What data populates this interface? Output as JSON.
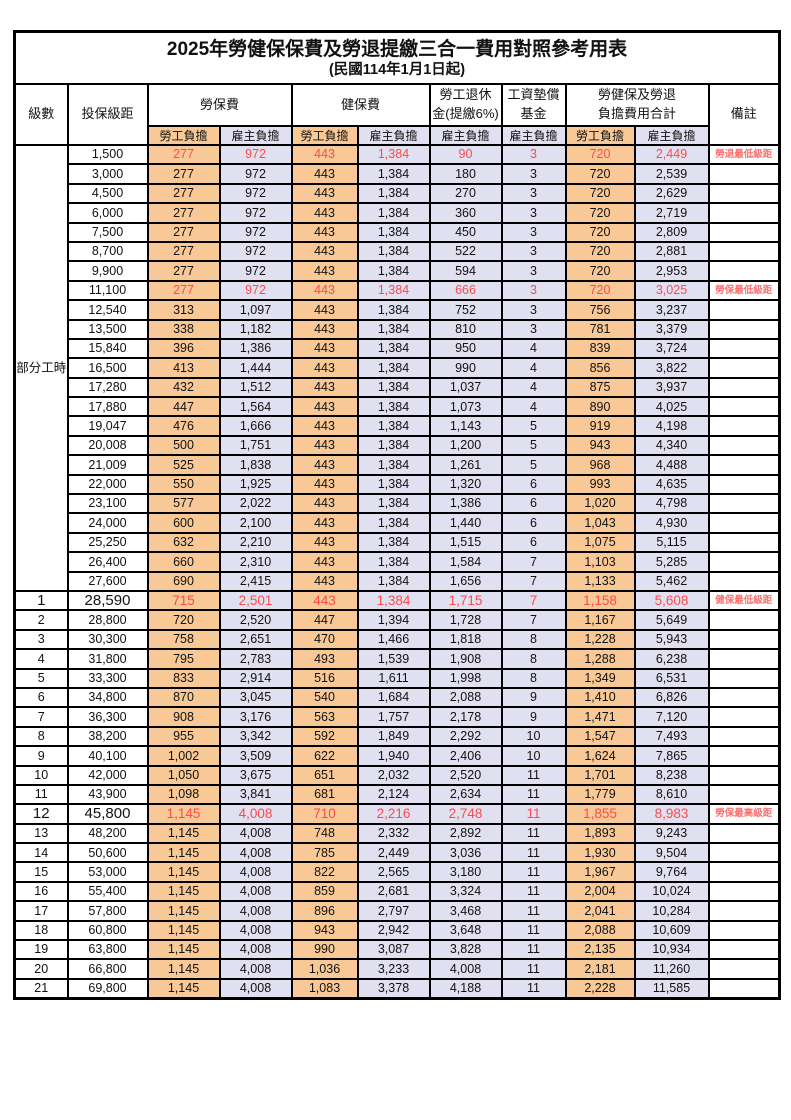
{
  "title": "2025年勞健保保費及勞退提繳三合一費用對照參考用表",
  "subtitle": "(民國114年1月1日起)",
  "colors": {
    "employee_bg": "#F8C996",
    "employer_bg": "#E1E0F1",
    "red_value": "#FB4B4B",
    "red_remark": "#FA7070",
    "border": "#000000"
  },
  "header": {
    "level": "級數",
    "bracket": "投保級距",
    "labor_ins": "勞保費",
    "health_ins": "健保費",
    "pension": "勞工退休\n金(提繳6%)",
    "wage_fund": "工資墊償\n基金",
    "total": "勞健保及勞退\n負擔費用合計",
    "remark": "備註",
    "employee": "勞工負擔",
    "employer": "雇主負擔"
  },
  "part_time_label": "部分工時",
  "table": {
    "part_time_span": 23,
    "rows": [
      {
        "level": "",
        "bracket": "1,500",
        "values": [
          "277",
          "972",
          "443",
          "1,384",
          "90",
          "3",
          "720",
          "2,449"
        ],
        "remark": "勞退最低級距",
        "style": "red"
      },
      {
        "level": "",
        "bracket": "3,000",
        "values": [
          "277",
          "972",
          "443",
          "1,384",
          "180",
          "3",
          "720",
          "2,539"
        ],
        "remark": "",
        "style": ""
      },
      {
        "level": "",
        "bracket": "4,500",
        "values": [
          "277",
          "972",
          "443",
          "1,384",
          "270",
          "3",
          "720",
          "2,629"
        ],
        "remark": "",
        "style": ""
      },
      {
        "level": "",
        "bracket": "6,000",
        "values": [
          "277",
          "972",
          "443",
          "1,384",
          "360",
          "3",
          "720",
          "2,719"
        ],
        "remark": "",
        "style": ""
      },
      {
        "level": "",
        "bracket": "7,500",
        "values": [
          "277",
          "972",
          "443",
          "1,384",
          "450",
          "3",
          "720",
          "2,809"
        ],
        "remark": "",
        "style": ""
      },
      {
        "level": "",
        "bracket": "8,700",
        "values": [
          "277",
          "972",
          "443",
          "1,384",
          "522",
          "3",
          "720",
          "2,881"
        ],
        "remark": "",
        "style": ""
      },
      {
        "level": "",
        "bracket": "9,900",
        "values": [
          "277",
          "972",
          "443",
          "1,384",
          "594",
          "3",
          "720",
          "2,953"
        ],
        "remark": "",
        "style": ""
      },
      {
        "level": "",
        "bracket": "11,100",
        "values": [
          "277",
          "972",
          "443",
          "1,384",
          "666",
          "3",
          "720",
          "3,025"
        ],
        "remark": "勞保最低級距",
        "style": "red"
      },
      {
        "level": "",
        "bracket": "12,540",
        "values": [
          "313",
          "1,097",
          "443",
          "1,384",
          "752",
          "3",
          "756",
          "3,237"
        ],
        "remark": "",
        "style": ""
      },
      {
        "level": "",
        "bracket": "13,500",
        "values": [
          "338",
          "1,182",
          "443",
          "1,384",
          "810",
          "3",
          "781",
          "3,379"
        ],
        "remark": "",
        "style": ""
      },
      {
        "level": "",
        "bracket": "15,840",
        "values": [
          "396",
          "1,386",
          "443",
          "1,384",
          "950",
          "4",
          "839",
          "3,724"
        ],
        "remark": "",
        "style": ""
      },
      {
        "level": "",
        "bracket": "16,500",
        "values": [
          "413",
          "1,444",
          "443",
          "1,384",
          "990",
          "4",
          "856",
          "3,822"
        ],
        "remark": "",
        "style": ""
      },
      {
        "level": "",
        "bracket": "17,280",
        "values": [
          "432",
          "1,512",
          "443",
          "1,384",
          "1,037",
          "4",
          "875",
          "3,937"
        ],
        "remark": "",
        "style": ""
      },
      {
        "level": "",
        "bracket": "17,880",
        "values": [
          "447",
          "1,564",
          "443",
          "1,384",
          "1,073",
          "4",
          "890",
          "4,025"
        ],
        "remark": "",
        "style": ""
      },
      {
        "level": "",
        "bracket": "19,047",
        "values": [
          "476",
          "1,666",
          "443",
          "1,384",
          "1,143",
          "5",
          "919",
          "4,198"
        ],
        "remark": "",
        "style": ""
      },
      {
        "level": "",
        "bracket": "20,008",
        "values": [
          "500",
          "1,751",
          "443",
          "1,384",
          "1,200",
          "5",
          "943",
          "4,340"
        ],
        "remark": "",
        "style": ""
      },
      {
        "level": "",
        "bracket": "21,009",
        "values": [
          "525",
          "1,838",
          "443",
          "1,384",
          "1,261",
          "5",
          "968",
          "4,488"
        ],
        "remark": "",
        "style": ""
      },
      {
        "level": "",
        "bracket": "22,000",
        "values": [
          "550",
          "1,925",
          "443",
          "1,384",
          "1,320",
          "6",
          "993",
          "4,635"
        ],
        "remark": "",
        "style": ""
      },
      {
        "level": "",
        "bracket": "23,100",
        "values": [
          "577",
          "2,022",
          "443",
          "1,384",
          "1,386",
          "6",
          "1,020",
          "4,798"
        ],
        "remark": "",
        "style": ""
      },
      {
        "level": "",
        "bracket": "24,000",
        "values": [
          "600",
          "2,100",
          "443",
          "1,384",
          "1,440",
          "6",
          "1,043",
          "4,930"
        ],
        "remark": "",
        "style": ""
      },
      {
        "level": "",
        "bracket": "25,250",
        "values": [
          "632",
          "2,210",
          "443",
          "1,384",
          "1,515",
          "6",
          "1,075",
          "5,115"
        ],
        "remark": "",
        "style": ""
      },
      {
        "level": "",
        "bracket": "26,400",
        "values": [
          "660",
          "2,310",
          "443",
          "1,384",
          "1,584",
          "7",
          "1,103",
          "5,285"
        ],
        "remark": "",
        "style": ""
      },
      {
        "level": "",
        "bracket": "27,600",
        "values": [
          "690",
          "2,415",
          "443",
          "1,384",
          "1,656",
          "7",
          "1,133",
          "5,462"
        ],
        "remark": "",
        "style": ""
      },
      {
        "level": "1",
        "bracket": "28,590",
        "values": [
          "715",
          "2,501",
          "443",
          "1,384",
          "1,715",
          "7",
          "1,158",
          "5,608"
        ],
        "remark": "健保最低級距",
        "style": "red-big"
      },
      {
        "level": "2",
        "bracket": "28,800",
        "values": [
          "720",
          "2,520",
          "447",
          "1,394",
          "1,728",
          "7",
          "1,167",
          "5,649"
        ],
        "remark": "",
        "style": ""
      },
      {
        "level": "3",
        "bracket": "30,300",
        "values": [
          "758",
          "2,651",
          "470",
          "1,466",
          "1,818",
          "8",
          "1,228",
          "5,943"
        ],
        "remark": "",
        "style": ""
      },
      {
        "level": "4",
        "bracket": "31,800",
        "values": [
          "795",
          "2,783",
          "493",
          "1,539",
          "1,908",
          "8",
          "1,288",
          "6,238"
        ],
        "remark": "",
        "style": ""
      },
      {
        "level": "5",
        "bracket": "33,300",
        "values": [
          "833",
          "2,914",
          "516",
          "1,611",
          "1,998",
          "8",
          "1,349",
          "6,531"
        ],
        "remark": "",
        "style": ""
      },
      {
        "level": "6",
        "bracket": "34,800",
        "values": [
          "870",
          "3,045",
          "540",
          "1,684",
          "2,088",
          "9",
          "1,410",
          "6,826"
        ],
        "remark": "",
        "style": ""
      },
      {
        "level": "7",
        "bracket": "36,300",
        "values": [
          "908",
          "3,176",
          "563",
          "1,757",
          "2,178",
          "9",
          "1,471",
          "7,120"
        ],
        "remark": "",
        "style": ""
      },
      {
        "level": "8",
        "bracket": "38,200",
        "values": [
          "955",
          "3,342",
          "592",
          "1,849",
          "2,292",
          "10",
          "1,547",
          "7,493"
        ],
        "remark": "",
        "style": ""
      },
      {
        "level": "9",
        "bracket": "40,100",
        "values": [
          "1,002",
          "3,509",
          "622",
          "1,940",
          "2,406",
          "10",
          "1,624",
          "7,865"
        ],
        "remark": "",
        "style": ""
      },
      {
        "level": "10",
        "bracket": "42,000",
        "values": [
          "1,050",
          "3,675",
          "651",
          "2,032",
          "2,520",
          "11",
          "1,701",
          "8,238"
        ],
        "remark": "",
        "style": ""
      },
      {
        "level": "11",
        "bracket": "43,900",
        "values": [
          "1,098",
          "3,841",
          "681",
          "2,124",
          "2,634",
          "11",
          "1,779",
          "8,610"
        ],
        "remark": "",
        "style": ""
      },
      {
        "level": "12",
        "bracket": "45,800",
        "values": [
          "1,145",
          "4,008",
          "710",
          "2,216",
          "2,748",
          "11",
          "1,855",
          "8,983"
        ],
        "remark": "勞保最高級距",
        "style": "red-big"
      },
      {
        "level": "13",
        "bracket": "48,200",
        "values": [
          "1,145",
          "4,008",
          "748",
          "2,332",
          "2,892",
          "11",
          "1,893",
          "9,243"
        ],
        "remark": "",
        "style": ""
      },
      {
        "level": "14",
        "bracket": "50,600",
        "values": [
          "1,145",
          "4,008",
          "785",
          "2,449",
          "3,036",
          "11",
          "1,930",
          "9,504"
        ],
        "remark": "",
        "style": ""
      },
      {
        "level": "15",
        "bracket": "53,000",
        "values": [
          "1,145",
          "4,008",
          "822",
          "2,565",
          "3,180",
          "11",
          "1,967",
          "9,764"
        ],
        "remark": "",
        "style": ""
      },
      {
        "level": "16",
        "bracket": "55,400",
        "values": [
          "1,145",
          "4,008",
          "859",
          "2,681",
          "3,324",
          "11",
          "2,004",
          "10,024"
        ],
        "remark": "",
        "style": ""
      },
      {
        "level": "17",
        "bracket": "57,800",
        "values": [
          "1,145",
          "4,008",
          "896",
          "2,797",
          "3,468",
          "11",
          "2,041",
          "10,284"
        ],
        "remark": "",
        "style": ""
      },
      {
        "level": "18",
        "bracket": "60,800",
        "values": [
          "1,145",
          "4,008",
          "943",
          "2,942",
          "3,648",
          "11",
          "2,088",
          "10,609"
        ],
        "remark": "",
        "style": ""
      },
      {
        "level": "19",
        "bracket": "63,800",
        "values": [
          "1,145",
          "4,008",
          "990",
          "3,087",
          "3,828",
          "11",
          "2,135",
          "10,934"
        ],
        "remark": "",
        "style": ""
      },
      {
        "level": "20",
        "bracket": "66,800",
        "values": [
          "1,145",
          "4,008",
          "1,036",
          "3,233",
          "4,008",
          "11",
          "2,181",
          "11,260"
        ],
        "remark": "",
        "style": ""
      },
      {
        "level": "21",
        "bracket": "69,800",
        "values": [
          "1,145",
          "4,008",
          "1,083",
          "3,378",
          "4,188",
          "11",
          "2,228",
          "11,585"
        ],
        "remark": "",
        "style": ""
      }
    ]
  }
}
